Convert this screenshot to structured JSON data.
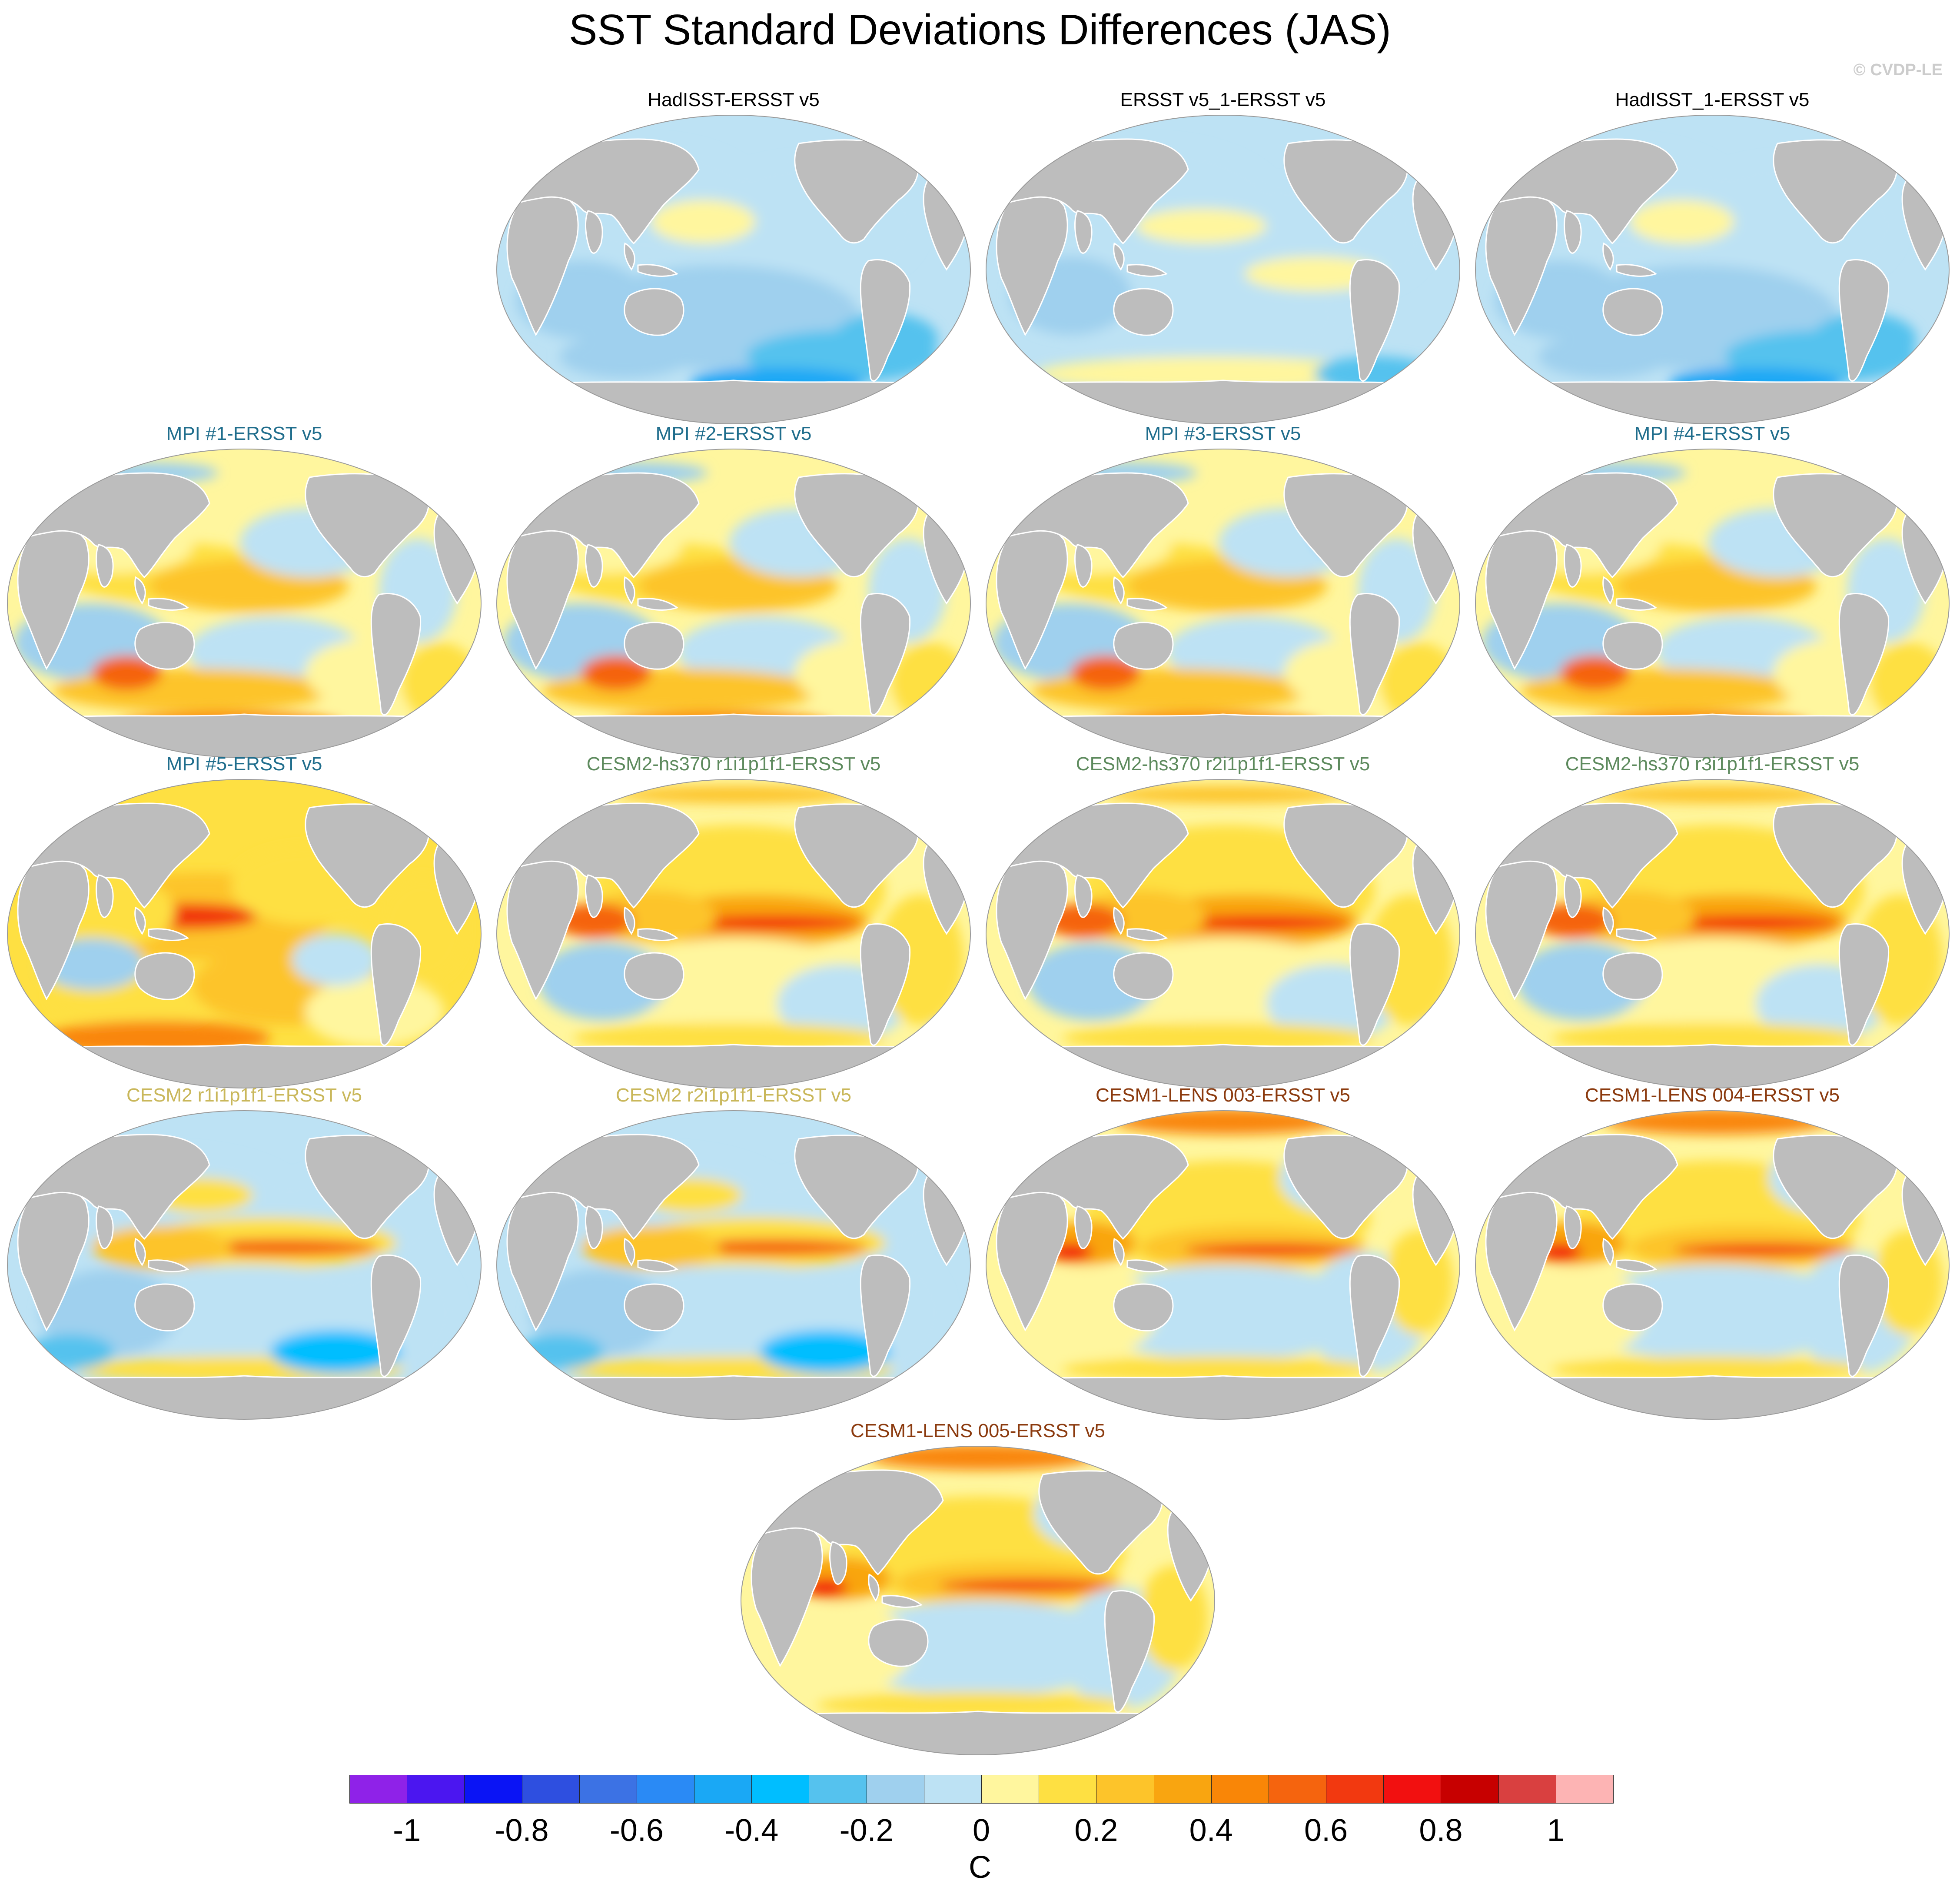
{
  "title": "SST Standard Deviations Differences (JAS)",
  "watermark": "© CVDP-LE",
  "panels": [
    {
      "title": "HadISST-ERSST v5",
      "color": "#000000",
      "pattern": "cool"
    },
    {
      "title": "ERSST v5_1-ERSST v5",
      "color": "#000000",
      "pattern": "cool-light"
    },
    {
      "title": "HadISST_1-ERSST v5",
      "color": "#000000",
      "pattern": "cool"
    },
    {
      "title": "MPI #1-ERSST v5",
      "color": "#1f6d8c",
      "pattern": "mixed"
    },
    {
      "title": "MPI #2-ERSST v5",
      "color": "#1f6d8c",
      "pattern": "mixed"
    },
    {
      "title": "MPI #3-ERSST v5",
      "color": "#1f6d8c",
      "pattern": "mixed"
    },
    {
      "title": "MPI #4-ERSST v5",
      "color": "#1f6d8c",
      "pattern": "mixed"
    },
    {
      "title": "MPI #5-ERSST v5",
      "color": "#1f6d8c",
      "pattern": "warm"
    },
    {
      "title": "CESM2-hs370 r1i1p1f1-ERSST v5",
      "color": "#5d8a5d",
      "pattern": "enso"
    },
    {
      "title": "CESM2-hs370 r2i1p1f1-ERSST v5",
      "color": "#5d8a5d",
      "pattern": "enso"
    },
    {
      "title": "CESM2-hs370 r3i1p1f1-ERSST v5",
      "color": "#5d8a5d",
      "pattern": "enso"
    },
    {
      "title": "CESM2 r1i1p1f1-ERSST v5",
      "color": "#c9b75a",
      "pattern": "enso-cool"
    },
    {
      "title": "CESM2 r2i1p1f1-ERSST v5",
      "color": "#c9b75a",
      "pattern": "enso-cool"
    },
    {
      "title": "CESM1-LENS 003-ERSST v5",
      "color": "#8b3a0e",
      "pattern": "enso-arctic"
    },
    {
      "title": "CESM1-LENS 004-ERSST v5",
      "color": "#8b3a0e",
      "pattern": "enso-arctic"
    },
    {
      "title": "CESM1-LENS 005-ERSST v5",
      "color": "#8b3a0e",
      "pattern": "enso-arctic"
    }
  ],
  "colorbar": {
    "unit": "C",
    "colors": [
      "#8f22e8",
      "#4b16f0",
      "#0a14f5",
      "#2e4fe0",
      "#3c72e4",
      "#2a8af5",
      "#1aa8f5",
      "#00beff",
      "#55c2ee",
      "#9fd0ee",
      "#bde2f4",
      "#fff69e",
      "#fee042",
      "#fdc42a",
      "#f9a510",
      "#f98607",
      "#f5640e",
      "#f23910",
      "#f21010",
      "#c70000",
      "#d94040",
      "#fdb4b4"
    ],
    "tick_labels": [
      "-1",
      "-0.8",
      "-0.6",
      "-0.4",
      "-0.2",
      "0",
      "0.2",
      "0.4",
      "0.6",
      "0.8",
      "1"
    ]
  }
}
